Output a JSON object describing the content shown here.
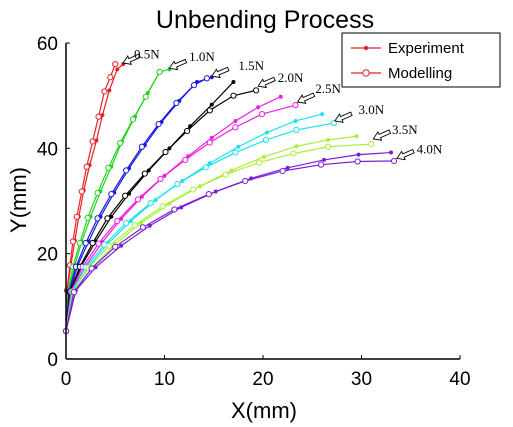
{
  "chart_data": {
    "type": "line",
    "title": "Unbending Process",
    "xlabel": "X(mm)",
    "ylabel": "Y(mm)",
    "xlim": [
      0,
      40
    ],
    "ylim": [
      0,
      60
    ],
    "xticks": [
      "0",
      "10",
      "20",
      "30",
      "40"
    ],
    "yticks": [
      "0",
      "20",
      "40",
      "60"
    ],
    "grid": false,
    "legend": {
      "placement": "top-right",
      "entries": [
        {
          "name": "Experiment",
          "marker": "dot",
          "color": "#e8212a"
        },
        {
          "name": "Modelling",
          "marker": "circle",
          "color": "#e8212a"
        }
      ]
    },
    "series": [
      {
        "load": "0.5N",
        "color": "#e8212a",
        "experiment": [
          [
            0,
            5.3
          ],
          [
            0.1,
            13
          ],
          [
            0.5,
            17.8
          ],
          [
            0.9,
            22.5
          ],
          [
            1.3,
            27
          ],
          [
            1.8,
            32
          ],
          [
            2.4,
            36.8
          ],
          [
            3.1,
            41.5
          ],
          [
            3.7,
            46.3
          ],
          [
            4.4,
            51
          ],
          [
            5.2,
            55
          ],
          [
            5.8,
            56
          ]
        ],
        "modelling": [
          [
            0,
            5.3
          ],
          [
            0.1,
            13
          ],
          [
            0.4,
            17.8
          ],
          [
            0.7,
            22.3
          ],
          [
            1.1,
            27
          ],
          [
            1.6,
            31.8
          ],
          [
            2.1,
            36.5
          ],
          [
            2.7,
            41.3
          ],
          [
            3.3,
            46
          ],
          [
            3.9,
            50.8
          ],
          [
            4.5,
            53.5
          ],
          [
            5,
            56
          ]
        ]
      },
      {
        "load": "1.0N",
        "color": "#22d31e",
        "experiment": [
          [
            0,
            5.3
          ],
          [
            0.3,
            13
          ],
          [
            0.9,
            17.8
          ],
          [
            1.6,
            22.3
          ],
          [
            2.5,
            27
          ],
          [
            3.5,
            31.8
          ],
          [
            4.6,
            36.5
          ],
          [
            5.7,
            41.3
          ],
          [
            7,
            46
          ],
          [
            8.3,
            50.5
          ],
          [
            9.5,
            54.5
          ],
          [
            10.5,
            55
          ]
        ],
        "modelling": [
          [
            0,
            5.3
          ],
          [
            0.2,
            12.8
          ],
          [
            0.7,
            17.5
          ],
          [
            1.4,
            22
          ],
          [
            2.2,
            26.8
          ],
          [
            3.2,
            31.5
          ],
          [
            4.3,
            36.3
          ],
          [
            5.5,
            41
          ],
          [
            6.8,
            45.5
          ],
          [
            8.1,
            49.8
          ],
          [
            9.5,
            54.5
          ]
        ]
      },
      {
        "load": "1.5N",
        "color": "#1818e0",
        "experiment": [
          [
            0,
            5.3
          ],
          [
            0.4,
            13
          ],
          [
            1.2,
            17.8
          ],
          [
            2.3,
            22.3
          ],
          [
            3.5,
            27
          ],
          [
            4.9,
            31.6
          ],
          [
            6.4,
            36.2
          ],
          [
            8,
            40.6
          ],
          [
            9.7,
            45
          ],
          [
            11.5,
            49
          ],
          [
            13.3,
            52.6
          ],
          [
            14.8,
            53.5
          ]
        ],
        "modelling": [
          [
            0,
            5.3
          ],
          [
            0.3,
            12.8
          ],
          [
            1,
            17.5
          ],
          [
            2,
            22
          ],
          [
            3.2,
            26.7
          ],
          [
            4.6,
            31.3
          ],
          [
            6.1,
            35.8
          ],
          [
            7.7,
            40.3
          ],
          [
            9.4,
            44.6
          ],
          [
            11.2,
            48.6
          ],
          [
            13,
            52
          ],
          [
            14.3,
            53.3
          ]
        ]
      },
      {
        "load": "2.0N",
        "color": "#000000",
        "experiment": [
          [
            0,
            5.3
          ],
          [
            0.5,
            13
          ],
          [
            1.6,
            17.8
          ],
          [
            3,
            22.3
          ],
          [
            4.6,
            27
          ],
          [
            6.4,
            31.4
          ],
          [
            8.4,
            35.8
          ],
          [
            10.5,
            40
          ],
          [
            12.6,
            44.2
          ],
          [
            14.8,
            48.3
          ],
          [
            17,
            52.6
          ]
        ],
        "modelling": [
          [
            0,
            5.3
          ],
          [
            0.4,
            12.8
          ],
          [
            1.4,
            17.5
          ],
          [
            2.7,
            22
          ],
          [
            4.2,
            26.7
          ],
          [
            6,
            31
          ],
          [
            8,
            35.2
          ],
          [
            10.1,
            39.3
          ],
          [
            12.3,
            43.3
          ],
          [
            14.6,
            47.2
          ],
          [
            17,
            50
          ],
          [
            19.3,
            51
          ]
        ]
      },
      {
        "load": "2.5N",
        "color": "#ec1ee6",
        "experiment": [
          [
            0,
            5.3
          ],
          [
            0.6,
            13
          ],
          [
            2,
            17.7
          ],
          [
            3.7,
            22.2
          ],
          [
            5.6,
            26.6
          ],
          [
            7.7,
            30.8
          ],
          [
            10,
            34.8
          ],
          [
            12.4,
            38.5
          ],
          [
            14.8,
            42
          ],
          [
            17.2,
            45.2
          ],
          [
            19.5,
            47.8
          ],
          [
            21.8,
            49.8
          ]
        ],
        "modelling": [
          [
            0,
            5.3
          ],
          [
            0.5,
            12.8
          ],
          [
            1.7,
            17.5
          ],
          [
            3.3,
            21.9
          ],
          [
            5.2,
            26.2
          ],
          [
            7.3,
            30.3
          ],
          [
            9.6,
            34.2
          ],
          [
            12.1,
            37.8
          ],
          [
            14.6,
            41.1
          ],
          [
            17.2,
            44
          ],
          [
            19.9,
            46.5
          ],
          [
            23.3,
            48.2
          ]
        ]
      },
      {
        "load": "3.0N",
        "color": "#1de0f0",
        "experiment": [
          [
            0,
            5.3
          ],
          [
            0.8,
            13
          ],
          [
            2.3,
            17.6
          ],
          [
            4.3,
            22
          ],
          [
            6.6,
            26.2
          ],
          [
            9.1,
            30.2
          ],
          [
            11.8,
            33.8
          ],
          [
            14.6,
            37.2
          ],
          [
            17.5,
            40.3
          ],
          [
            20.4,
            43
          ],
          [
            23.3,
            45.2
          ],
          [
            26,
            46.5
          ]
        ],
        "modelling": [
          [
            0,
            5.3
          ],
          [
            0.6,
            12.8
          ],
          [
            2,
            17.4
          ],
          [
            3.9,
            21.7
          ],
          [
            6.1,
            25.8
          ],
          [
            8.6,
            29.6
          ],
          [
            11.3,
            33.2
          ],
          [
            14.2,
            36.4
          ],
          [
            17.2,
            39.2
          ],
          [
            20.3,
            41.6
          ],
          [
            23.4,
            43.5
          ],
          [
            27.2,
            44.8
          ]
        ]
      },
      {
        "load": "3.5N",
        "color": "#a8f03a",
        "experiment": [
          [
            0,
            5.3
          ],
          [
            0.9,
            13
          ],
          [
            2.7,
            17.5
          ],
          [
            5,
            21.8
          ],
          [
            7.6,
            25.8
          ],
          [
            10.5,
            29.5
          ],
          [
            13.6,
            32.8
          ],
          [
            16.8,
            35.8
          ],
          [
            20.1,
            38.4
          ],
          [
            23.4,
            40.4
          ],
          [
            26.6,
            41.6
          ],
          [
            29.5,
            42.3
          ]
        ],
        "modelling": [
          [
            0,
            5.3
          ],
          [
            0.7,
            12.8
          ],
          [
            2.3,
            17.3
          ],
          [
            4.4,
            21.5
          ],
          [
            7,
            25.4
          ],
          [
            9.8,
            29
          ],
          [
            12.9,
            32.2
          ],
          [
            16.2,
            35
          ],
          [
            19.6,
            37.3
          ],
          [
            23.1,
            39
          ],
          [
            26.6,
            40.3
          ],
          [
            31,
            40.8
          ]
        ]
      },
      {
        "load": "4.0N",
        "color": "#7a1fd8",
        "experiment": [
          [
            0,
            5.3
          ],
          [
            1,
            13
          ],
          [
            3,
            17.4
          ],
          [
            5.6,
            21.5
          ],
          [
            8.5,
            25.3
          ],
          [
            11.7,
            28.8
          ],
          [
            15.2,
            31.8
          ],
          [
            18.8,
            34.3
          ],
          [
            22.5,
            36.3
          ],
          [
            26.2,
            37.8
          ],
          [
            29.7,
            38.8
          ],
          [
            33,
            39.2
          ]
        ],
        "modelling": [
          [
            0,
            5.3
          ],
          [
            0.8,
            12.7
          ],
          [
            2.6,
            17.2
          ],
          [
            5,
            21.3
          ],
          [
            7.8,
            25
          ],
          [
            11,
            28.4
          ],
          [
            14.5,
            31.3
          ],
          [
            18.2,
            33.8
          ],
          [
            22,
            35.7
          ],
          [
            25.9,
            36.9
          ],
          [
            29.6,
            37.5
          ],
          [
            33.3,
            37.6
          ]
        ]
      }
    ],
    "annotations": [
      {
        "text": "0.5N",
        "arrow_to": [
          5.8,
          56.2
        ],
        "label_at": [
          6.9,
          57.8
        ]
      },
      {
        "text": "1.0N",
        "arrow_to": [
          10.5,
          55.2
        ],
        "label_at": [
          12.5,
          57.3
        ]
      },
      {
        "text": "1.5N",
        "arrow_to": [
          14.8,
          53.7
        ],
        "label_at": [
          17.5,
          55.6
        ]
      },
      {
        "text": "2.0N",
        "arrow_to": [
          19.5,
          51.8
        ],
        "label_at": [
          21.5,
          53.4
        ]
      },
      {
        "text": "2.5N",
        "arrow_to": [
          23.5,
          48.8
        ],
        "label_at": [
          25.3,
          51.3
        ]
      },
      {
        "text": "3.0N",
        "arrow_to": [
          27.3,
          45.2
        ],
        "label_at": [
          29.7,
          47.3
        ]
      },
      {
        "text": "3.5N",
        "arrow_to": [
          31.2,
          41.8
        ],
        "label_at": [
          33.1,
          43.5
        ]
      },
      {
        "text": "4.0N",
        "arrow_to": [
          33.6,
          38.1
        ],
        "label_at": [
          35.6,
          39.8
        ]
      }
    ]
  }
}
